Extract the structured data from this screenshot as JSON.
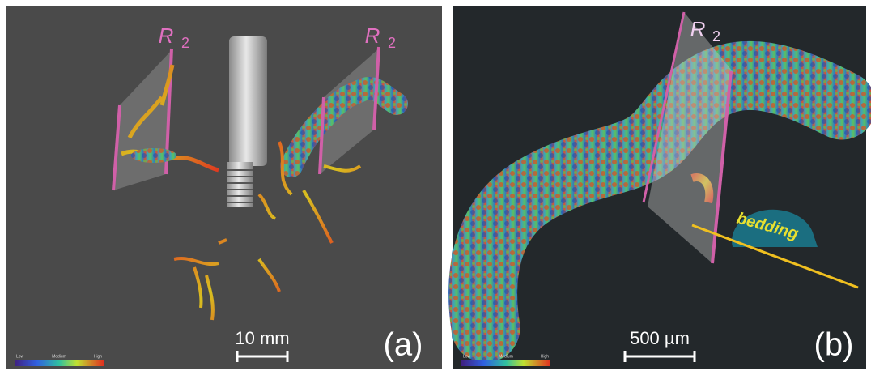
{
  "panels": [
    {
      "label": "(a)",
      "scale_bar": "10 mm",
      "plane_label": {
        "main": "R",
        "sub": "2"
      },
      "colorbar": [
        "Low",
        "Medium",
        "High"
      ]
    },
    {
      "label": "(b)",
      "scale_bar": "500 µm",
      "plane_label": {
        "main": "R",
        "sub": "2"
      },
      "colorbar": [
        "Low",
        "Medium",
        "High"
      ],
      "annotation": "bedding"
    }
  ]
}
